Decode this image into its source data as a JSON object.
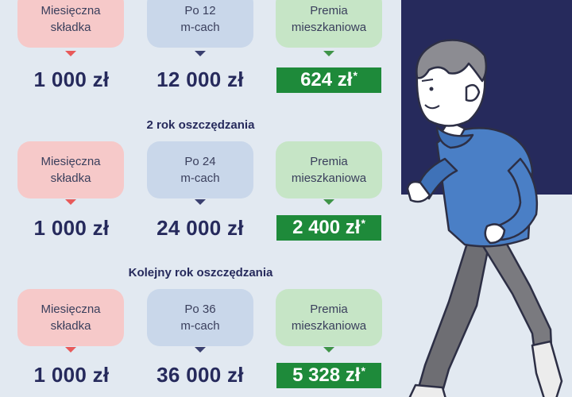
{
  "sections": [
    {
      "title": "",
      "labels": [
        "Miesięczna\nskładka",
        "Po 12\nm-cach",
        "Premia\nmieszkaniowa"
      ],
      "monthly": "1 000 zł",
      "total": "12 000 zł",
      "premium": "624 zł",
      "premium_mark": "*"
    },
    {
      "title": "2 rok oszczędzania",
      "labels": [
        "Miesięczna\nskładka",
        "Po 24\nm-cach",
        "Premia\nmieszkaniowa"
      ],
      "monthly": "1 000 zł",
      "total": "24 000 zł",
      "premium": "2 400 zł",
      "premium_mark": "*"
    },
    {
      "title": "Kolejny rok oszczędzania",
      "labels": [
        "Miesięczna\nskładka",
        "Po 36\nm-cach",
        "Premia\nmieszkaniowa"
      ],
      "monthly": "1 000 zł",
      "total": "36 000 zł",
      "premium": "5 328 zł",
      "premium_mark": "*"
    }
  ],
  "colors": {
    "background": "#e2e9f1",
    "navy": "#262a5c",
    "pink": "#f6c9c9",
    "blue": "#c9d7ea",
    "green_light": "#c6e5c6",
    "green_dark": "#1e8a3a",
    "hoodie": "#4a7fc6"
  },
  "illustration": "runner-illustration"
}
